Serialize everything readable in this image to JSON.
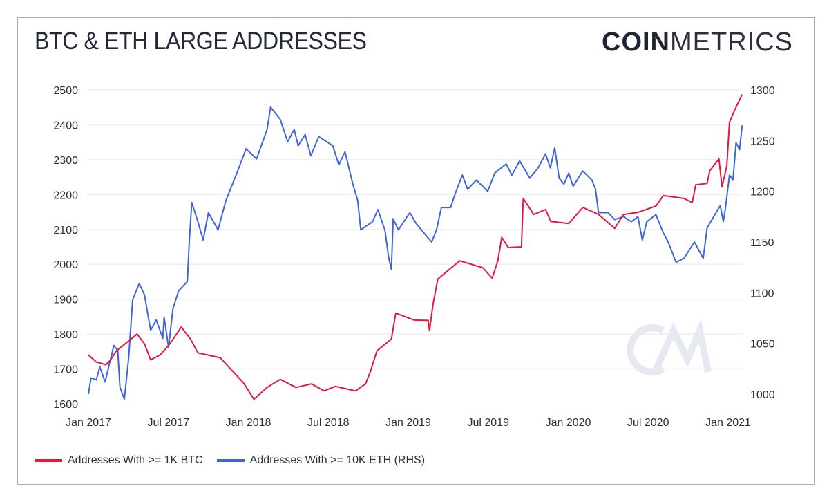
{
  "header": {
    "title": "BTC & ETH LARGE ADDRESSES",
    "logo_bold": "COIN",
    "logo_light": "METRICS",
    "watermark": "CM"
  },
  "colors": {
    "btc": "#e3173e",
    "eth": "#3f64d8",
    "grid": "#eeeeee",
    "watermark": "#e6e9f2"
  },
  "chart_data": {
    "type": "line",
    "title": "BTC & ETH LARGE ADDRESSES",
    "x_ticks": [
      "Jan 2017",
      "Jul 2017",
      "Jan 2018",
      "Jul 2018",
      "Jan 2019",
      "Jul 2019",
      "Jan 2020",
      "Jul 2020",
      "Jan 2021"
    ],
    "y_left": {
      "ticks": [
        1600,
        1700,
        1800,
        1900,
        2000,
        2100,
        2200,
        2300,
        2400,
        2500
      ],
      "range": [
        1600,
        2500
      ]
    },
    "y_right": {
      "ticks": [
        1000,
        1050,
        1100,
        1150,
        1200,
        1250,
        1300
      ],
      "range": [
        1000,
        1300
      ]
    },
    "grid": true,
    "legend_placement": "bottom-left",
    "series": [
      {
        "name": "Addresses With >= 1K BTC",
        "axis": "left",
        "color": "#e3173e",
        "points": [
          [
            "2017-01-01",
            1740
          ],
          [
            "2017-01-19",
            1720
          ],
          [
            "2017-02-10",
            1712
          ],
          [
            "2017-02-20",
            1725
          ],
          [
            "2017-03-06",
            1752
          ],
          [
            "2017-04-03",
            1780
          ],
          [
            "2017-04-22",
            1800
          ],
          [
            "2017-05-09",
            1772
          ],
          [
            "2017-05-23",
            1726
          ],
          [
            "2017-06-14",
            1740
          ],
          [
            "2017-07-06",
            1772
          ],
          [
            "2017-08-01",
            1820
          ],
          [
            "2017-08-22",
            1786
          ],
          [
            "2017-09-08",
            1746
          ],
          [
            "2017-10-29",
            1732
          ],
          [
            "2017-12-21",
            1660
          ],
          [
            "2018-01-14",
            1613
          ],
          [
            "2018-02-13",
            1647
          ],
          [
            "2018-03-15",
            1670
          ],
          [
            "2018-04-20",
            1647
          ],
          [
            "2018-05-26",
            1657
          ],
          [
            "2018-06-23",
            1637
          ],
          [
            "2018-07-19",
            1650
          ],
          [
            "2018-09-03",
            1637
          ],
          [
            "2018-09-26",
            1657
          ],
          [
            "2018-10-07",
            1693
          ],
          [
            "2018-10-22",
            1752
          ],
          [
            "2018-11-24",
            1786
          ],
          [
            "2018-12-04",
            1860
          ],
          [
            "2019-01-15",
            1840
          ],
          [
            "2019-02-16",
            1839
          ],
          [
            "2019-02-19",
            1810
          ],
          [
            "2019-02-27",
            1885
          ],
          [
            "2019-03-10",
            1958
          ],
          [
            "2019-04-04",
            1984
          ],
          [
            "2019-04-29",
            2010
          ],
          [
            "2019-06-21",
            1990
          ],
          [
            "2019-07-12",
            1960
          ],
          [
            "2019-07-25",
            2010
          ],
          [
            "2019-08-03",
            2077
          ],
          [
            "2019-08-18",
            2048
          ],
          [
            "2019-09-17",
            2050
          ],
          [
            "2019-09-21",
            2189
          ],
          [
            "2019-10-15",
            2143
          ],
          [
            "2019-11-11",
            2157
          ],
          [
            "2019-11-23",
            2123
          ],
          [
            "2020-01-03",
            2117
          ],
          [
            "2020-02-04",
            2163
          ],
          [
            "2020-03-11",
            2143
          ],
          [
            "2020-04-17",
            2103
          ],
          [
            "2020-05-07",
            2143
          ],
          [
            "2020-06-09",
            2149
          ],
          [
            "2020-07-20",
            2167
          ],
          [
            "2020-08-06",
            2197
          ],
          [
            "2020-09-22",
            2189
          ],
          [
            "2020-10-11",
            2177
          ],
          [
            "2020-10-19",
            2228
          ],
          [
            "2020-11-14",
            2232
          ],
          [
            "2020-11-20",
            2268
          ],
          [
            "2020-12-11",
            2302
          ],
          [
            "2020-12-18",
            2222
          ],
          [
            "2020-12-29",
            2282
          ],
          [
            "2021-01-04",
            2407
          ],
          [
            "2021-01-15",
            2440
          ],
          [
            "2021-02-02",
            2487
          ]
        ]
      },
      {
        "name": "Addresses With >= 10K ETH (RHS)",
        "axis": "right",
        "color": "#3f64d8",
        "points": [
          [
            "2017-01-01",
            1000
          ],
          [
            "2017-01-07",
            1016
          ],
          [
            "2017-01-19",
            1014
          ],
          [
            "2017-01-27",
            1027
          ],
          [
            "2017-02-08",
            1012
          ],
          [
            "2017-02-28",
            1048
          ],
          [
            "2017-03-09",
            1043
          ],
          [
            "2017-03-14",
            1007
          ],
          [
            "2017-03-24",
            995
          ],
          [
            "2017-04-03",
            1036
          ],
          [
            "2017-04-12",
            1093
          ],
          [
            "2017-04-27",
            1109
          ],
          [
            "2017-05-09",
            1098
          ],
          [
            "2017-05-23",
            1063
          ],
          [
            "2017-06-05",
            1073
          ],
          [
            "2017-06-20",
            1055
          ],
          [
            "2017-06-23",
            1076
          ],
          [
            "2017-07-03",
            1046
          ],
          [
            "2017-07-13",
            1084
          ],
          [
            "2017-07-26",
            1102
          ],
          [
            "2017-08-15",
            1111
          ],
          [
            "2017-08-19",
            1148
          ],
          [
            "2017-08-25",
            1189
          ],
          [
            "2017-09-08",
            1170
          ],
          [
            "2017-09-20",
            1152
          ],
          [
            "2017-10-02",
            1179
          ],
          [
            "2017-10-24",
            1162
          ],
          [
            "2017-11-11",
            1191
          ],
          [
            "2017-12-06",
            1218
          ],
          [
            "2017-12-27",
            1242
          ],
          [
            "2018-01-20",
            1232
          ],
          [
            "2018-02-13",
            1261
          ],
          [
            "2018-02-21",
            1283
          ],
          [
            "2018-03-15",
            1271
          ],
          [
            "2018-04-01",
            1249
          ],
          [
            "2018-04-16",
            1261
          ],
          [
            "2018-04-25",
            1245
          ],
          [
            "2018-05-11",
            1256
          ],
          [
            "2018-05-24",
            1235
          ],
          [
            "2018-06-11",
            1254
          ],
          [
            "2018-07-13",
            1245
          ],
          [
            "2018-07-27",
            1226
          ],
          [
            "2018-08-10",
            1239
          ],
          [
            "2018-08-28",
            1207
          ],
          [
            "2018-09-08",
            1191
          ],
          [
            "2018-09-15",
            1162
          ],
          [
            "2018-10-12",
            1170
          ],
          [
            "2018-10-24",
            1182
          ],
          [
            "2018-11-09",
            1162
          ],
          [
            "2018-11-18",
            1134
          ],
          [
            "2018-11-24",
            1123
          ],
          [
            "2018-11-28",
            1173
          ],
          [
            "2018-12-10",
            1162
          ],
          [
            "2019-01-05",
            1179
          ],
          [
            "2019-01-20",
            1168
          ],
          [
            "2019-02-06",
            1159
          ],
          [
            "2019-02-24",
            1150
          ],
          [
            "2019-03-07",
            1162
          ],
          [
            "2019-03-18",
            1184
          ],
          [
            "2019-04-08",
            1184
          ],
          [
            "2019-04-19",
            1198
          ],
          [
            "2019-05-05",
            1216
          ],
          [
            "2019-05-17",
            1202
          ],
          [
            "2019-06-06",
            1211
          ],
          [
            "2019-07-02",
            1200
          ],
          [
            "2019-07-18",
            1218
          ],
          [
            "2019-08-13",
            1227
          ],
          [
            "2019-08-26",
            1216
          ],
          [
            "2019-09-13",
            1230
          ],
          [
            "2019-10-06",
            1213
          ],
          [
            "2019-10-25",
            1223
          ],
          [
            "2019-11-11",
            1237
          ],
          [
            "2019-11-22",
            1223
          ],
          [
            "2019-12-02",
            1243
          ],
          [
            "2019-12-12",
            1213
          ],
          [
            "2019-12-23",
            1207
          ],
          [
            "2020-01-03",
            1218
          ],
          [
            "2020-01-13",
            1205
          ],
          [
            "2020-02-04",
            1220
          ],
          [
            "2020-02-25",
            1211
          ],
          [
            "2020-03-04",
            1202
          ],
          [
            "2020-03-11",
            1179
          ],
          [
            "2020-04-02",
            1179
          ],
          [
            "2020-04-17",
            1172
          ],
          [
            "2020-05-07",
            1175
          ],
          [
            "2020-05-25",
            1170
          ],
          [
            "2020-06-09",
            1175
          ],
          [
            "2020-06-19",
            1152
          ],
          [
            "2020-06-29",
            1170
          ],
          [
            "2020-07-20",
            1177
          ],
          [
            "2020-08-06",
            1159
          ],
          [
            "2020-08-17",
            1150
          ],
          [
            "2020-09-04",
            1130
          ],
          [
            "2020-09-22",
            1134
          ],
          [
            "2020-10-16",
            1150
          ],
          [
            "2020-11-05",
            1134
          ],
          [
            "2020-11-14",
            1164
          ],
          [
            "2020-11-29",
            1175
          ],
          [
            "2020-12-14",
            1186
          ],
          [
            "2020-12-21",
            1170
          ],
          [
            "2020-12-26",
            1184
          ],
          [
            "2021-01-04",
            1216
          ],
          [
            "2021-01-12",
            1211
          ],
          [
            "2021-01-19",
            1248
          ],
          [
            "2021-01-27",
            1241
          ],
          [
            "2021-02-02",
            1265
          ]
        ]
      }
    ]
  }
}
